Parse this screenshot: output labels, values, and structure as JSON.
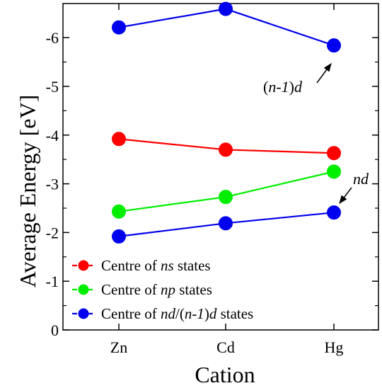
{
  "chart_data": {
    "type": "line",
    "xlabel": "Cation",
    "ylabel": "Average Energy [eV]",
    "categories": [
      "Zn",
      "Cd",
      "Hg"
    ],
    "ylim": [
      0,
      -6.7
    ],
    "yticks": [
      0,
      -1,
      -2,
      -3,
      -4,
      -5,
      -6
    ],
    "ytick_labels": [
      "0",
      "-1",
      "-2",
      "-3",
      "-4",
      "-5",
      "-6"
    ],
    "grid": false,
    "legend_position": "bottom-left",
    "series": [
      {
        "key": "ns",
        "legend": [
          {
            "t": "Centre of ",
            "i": false
          },
          {
            "t": "ns",
            "i": true
          },
          {
            "t": " states",
            "i": false
          }
        ],
        "color": "#ff0000",
        "values": [
          -3.92,
          -3.7,
          -3.63
        ]
      },
      {
        "key": "np",
        "legend": [
          {
            "t": "Centre of ",
            "i": false
          },
          {
            "t": "np",
            "i": true
          },
          {
            "t": " states",
            "i": false
          }
        ],
        "color": "#00ee00",
        "values": [
          -2.43,
          -2.73,
          -3.25
        ]
      },
      {
        "key": "nd",
        "legend": [
          {
            "t": "Centre of ",
            "i": false
          },
          {
            "t": "nd",
            "i": true
          },
          {
            "t": "/(",
            "i": false
          },
          {
            "t": "n-1",
            "i": true
          },
          {
            "t": ")",
            "i": false
          },
          {
            "t": "d",
            "i": true
          },
          {
            "t": " states",
            "i": false
          }
        ],
        "color": "#0000ee",
        "values": [
          -1.92,
          -2.19,
          -2.41
        ]
      },
      {
        "key": "n1d",
        "legend": null,
        "color": "#0000ee",
        "values": [
          -6.21,
          -6.59,
          -5.84
        ]
      }
    ],
    "annotations": [
      {
        "key": "n1d_label",
        "parts": [
          {
            "t": "(",
            "i": false
          },
          {
            "t": "n-1",
            "i": true
          },
          {
            "t": ")",
            "i": false
          },
          {
            "t": "d",
            "i": true
          }
        ],
        "target_series": "n1d",
        "target_index": 2
      },
      {
        "key": "nd_label",
        "parts": [
          {
            "t": "nd",
            "i": true
          }
        ],
        "target_series": "nd",
        "target_index": 2
      }
    ]
  }
}
